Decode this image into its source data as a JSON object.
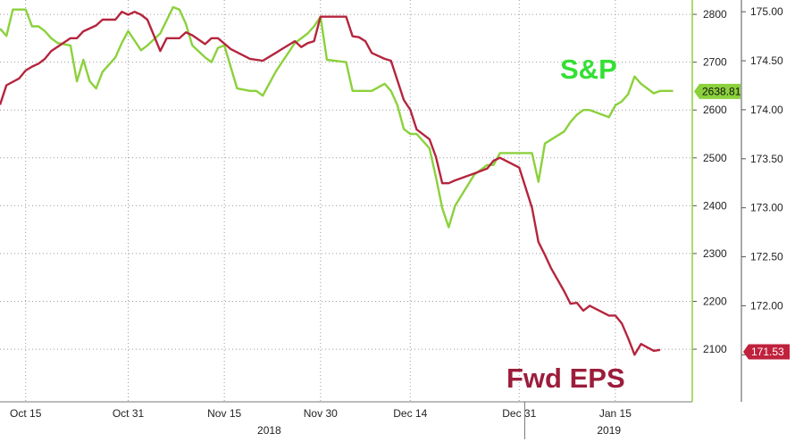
{
  "chart_data": {
    "type": "line",
    "title": "",
    "xlabel": "",
    "x_ticks": [
      {
        "label": "Oct 15",
        "date": "2018-10-15"
      },
      {
        "label": "Oct 31",
        "date": "2018-10-31"
      },
      {
        "label": "Nov 15",
        "date": "2018-11-15"
      },
      {
        "label": "Nov 30",
        "date": "2018-11-30"
      },
      {
        "label": "Dec 14",
        "date": "2018-12-14"
      },
      {
        "label": "Dec 31",
        "date": "2018-12-31"
      },
      {
        "label": "Jan 15",
        "date": "2019-01-15"
      }
    ],
    "x_years": [
      {
        "label": "2018",
        "date": "2018-11-22"
      },
      {
        "label": "2019",
        "date": "2019-01-14"
      }
    ],
    "xlim": [
      "2018-10-11",
      "2019-01-27"
    ],
    "y_left": {
      "ticks": [
        "2100",
        "2200",
        "2300",
        "2400",
        "2500",
        "2600",
        "2700",
        "2800"
      ],
      "range": [
        1990,
        2830
      ]
    },
    "y_right": {
      "ticks": [
        "171.50",
        "172.00",
        "172.50",
        "173.00",
        "173.50",
        "174.00",
        "174.50",
        "175.00"
      ],
      "range": [
        171.02,
        175.12
      ]
    },
    "grid": true,
    "series": [
      {
        "name": "S&P",
        "axis": "left",
        "color": "#8bd13c",
        "label_color": "#33e033",
        "last_value": "2638.81",
        "points": [
          [
            "2018-10-11",
            2770
          ],
          [
            "2018-10-12",
            2755
          ],
          [
            "2018-10-13",
            2810
          ],
          [
            "2018-10-15",
            2810
          ],
          [
            "2018-10-16",
            2775
          ],
          [
            "2018-10-17",
            2775
          ],
          [
            "2018-10-18",
            2765
          ],
          [
            "2018-10-19",
            2750
          ],
          [
            "2018-10-20",
            2740
          ],
          [
            "2018-10-22",
            2735
          ],
          [
            "2018-10-23",
            2660
          ],
          [
            "2018-10-24",
            2705
          ],
          [
            "2018-10-25",
            2660
          ],
          [
            "2018-10-26",
            2645
          ],
          [
            "2018-10-27",
            2680
          ],
          [
            "2018-10-29",
            2710
          ],
          [
            "2018-10-30",
            2740
          ],
          [
            "2018-10-31",
            2765
          ],
          [
            "2018-11-01",
            2745
          ],
          [
            "2018-11-02",
            2725
          ],
          [
            "2018-11-03",
            2735
          ],
          [
            "2018-11-05",
            2760
          ],
          [
            "2018-11-07",
            2815
          ],
          [
            "2018-11-08",
            2810
          ],
          [
            "2018-11-09",
            2780
          ],
          [
            "2018-11-10",
            2735
          ],
          [
            "2018-11-12",
            2710
          ],
          [
            "2018-11-13",
            2700
          ],
          [
            "2018-11-14",
            2730
          ],
          [
            "2018-11-15",
            2735
          ],
          [
            "2018-11-16",
            2690
          ],
          [
            "2018-11-17",
            2645
          ],
          [
            "2018-11-19",
            2640
          ],
          [
            "2018-11-20",
            2640
          ],
          [
            "2018-11-21",
            2630
          ],
          [
            "2018-11-23",
            2680
          ],
          [
            "2018-11-24",
            2700
          ],
          [
            "2018-11-26",
            2740
          ],
          [
            "2018-11-27",
            2750
          ],
          [
            "2018-11-28",
            2760
          ],
          [
            "2018-11-29",
            2775
          ],
          [
            "2018-11-30",
            2795
          ],
          [
            "2018-12-01",
            2705
          ],
          [
            "2018-12-04",
            2700
          ],
          [
            "2018-12-05",
            2640
          ],
          [
            "2018-12-07",
            2640
          ],
          [
            "2018-12-08",
            2640
          ],
          [
            "2018-12-10",
            2655
          ],
          [
            "2018-12-11",
            2640
          ],
          [
            "2018-12-12",
            2610
          ],
          [
            "2018-12-13",
            2560
          ],
          [
            "2018-12-14",
            2550
          ],
          [
            "2018-12-15",
            2550
          ],
          [
            "2018-12-17",
            2520
          ],
          [
            "2018-12-18",
            2460
          ],
          [
            "2018-12-19",
            2395
          ],
          [
            "2018-12-20",
            2355
          ],
          [
            "2018-12-21",
            2400
          ],
          [
            "2018-12-24",
            2465
          ],
          [
            "2018-12-26",
            2485
          ],
          [
            "2018-12-27",
            2485
          ],
          [
            "2018-12-28",
            2510
          ],
          [
            "2018-12-31",
            2510
          ],
          [
            "2019-01-02",
            2510
          ],
          [
            "2019-01-03",
            2450
          ],
          [
            "2019-01-04",
            2530
          ],
          [
            "2019-01-07",
            2555
          ],
          [
            "2019-01-08",
            2575
          ],
          [
            "2019-01-09",
            2590
          ],
          [
            "2019-01-10",
            2600
          ],
          [
            "2019-01-11",
            2600
          ],
          [
            "2019-01-14",
            2585
          ],
          [
            "2019-01-15",
            2610
          ],
          [
            "2019-01-16",
            2618
          ],
          [
            "2019-01-17",
            2633
          ],
          [
            "2019-01-18",
            2670
          ],
          [
            "2019-01-19",
            2655
          ],
          [
            "2019-01-21",
            2635
          ],
          [
            "2019-01-22",
            2640
          ],
          [
            "2019-01-24",
            2640
          ]
        ]
      },
      {
        "name": "Fwd EPS",
        "axis": "right",
        "color": "#b5253e",
        "label_color": "#9c1d3b",
        "last_value": "171.53",
        "points": [
          [
            "2018-10-11",
            174.05
          ],
          [
            "2018-10-12",
            174.25
          ],
          [
            "2018-10-14",
            174.32
          ],
          [
            "2018-10-15",
            174.4
          ],
          [
            "2018-10-16",
            174.44
          ],
          [
            "2018-10-17",
            174.47
          ],
          [
            "2018-10-18",
            174.52
          ],
          [
            "2018-10-19",
            174.6
          ],
          [
            "2018-10-22",
            174.73
          ],
          [
            "2018-10-23",
            174.73
          ],
          [
            "2018-10-24",
            174.8
          ],
          [
            "2018-10-26",
            174.86
          ],
          [
            "2018-10-27",
            174.92
          ],
          [
            "2018-10-29",
            174.92
          ],
          [
            "2018-10-30",
            175.0
          ],
          [
            "2018-10-31",
            174.97
          ],
          [
            "2018-11-01",
            175.0
          ],
          [
            "2018-11-02",
            174.97
          ],
          [
            "2018-11-03",
            174.92
          ],
          [
            "2018-11-05",
            174.6
          ],
          [
            "2018-11-06",
            174.73
          ],
          [
            "2018-11-08",
            174.73
          ],
          [
            "2018-11-09",
            174.79
          ],
          [
            "2018-11-10",
            174.76
          ],
          [
            "2018-11-12",
            174.67
          ],
          [
            "2018-11-13",
            174.73
          ],
          [
            "2018-11-14",
            174.73
          ],
          [
            "2018-11-16",
            174.62
          ],
          [
            "2018-11-19",
            174.52
          ],
          [
            "2018-11-21",
            174.5
          ],
          [
            "2018-11-23",
            174.58
          ],
          [
            "2018-11-24",
            174.62
          ],
          [
            "2018-11-26",
            174.7
          ],
          [
            "2018-11-27",
            174.64
          ],
          [
            "2018-11-28",
            174.68
          ],
          [
            "2018-11-29",
            174.7
          ],
          [
            "2018-11-30",
            174.95
          ],
          [
            "2018-12-01",
            174.95
          ],
          [
            "2018-12-04",
            174.95
          ],
          [
            "2018-12-05",
            174.75
          ],
          [
            "2018-12-06",
            174.74
          ],
          [
            "2018-12-07",
            174.7
          ],
          [
            "2018-12-08",
            174.58
          ],
          [
            "2018-12-10",
            174.52
          ],
          [
            "2018-12-11",
            174.5
          ],
          [
            "2018-12-12",
            174.3
          ],
          [
            "2018-12-13",
            174.1
          ],
          [
            "2018-12-14",
            174.0
          ],
          [
            "2018-12-15",
            173.8
          ],
          [
            "2018-12-17",
            173.7
          ],
          [
            "2018-12-18",
            173.52
          ],
          [
            "2018-12-19",
            173.25
          ],
          [
            "2018-12-20",
            173.25
          ],
          [
            "2018-12-21",
            173.28
          ],
          [
            "2018-12-24",
            173.35
          ],
          [
            "2018-12-26",
            173.4
          ],
          [
            "2018-12-27",
            173.48
          ],
          [
            "2018-12-28",
            173.51
          ],
          [
            "2018-12-31",
            173.41
          ],
          [
            "2019-01-02",
            173.0
          ],
          [
            "2019-01-03",
            172.65
          ],
          [
            "2019-01-04",
            172.52
          ],
          [
            "2019-01-05",
            172.38
          ],
          [
            "2019-01-07",
            172.15
          ],
          [
            "2019-01-08",
            172.02
          ],
          [
            "2019-01-09",
            172.03
          ],
          [
            "2019-01-10",
            171.95
          ],
          [
            "2019-01-11",
            172.0
          ],
          [
            "2019-01-14",
            171.9
          ],
          [
            "2019-01-15",
            171.9
          ],
          [
            "2019-01-16",
            171.82
          ],
          [
            "2019-01-17",
            171.67
          ],
          [
            "2019-01-18",
            171.5
          ],
          [
            "2019-01-19",
            171.61
          ],
          [
            "2019-01-21",
            171.54
          ],
          [
            "2019-01-22",
            171.55
          ]
        ]
      }
    ]
  }
}
